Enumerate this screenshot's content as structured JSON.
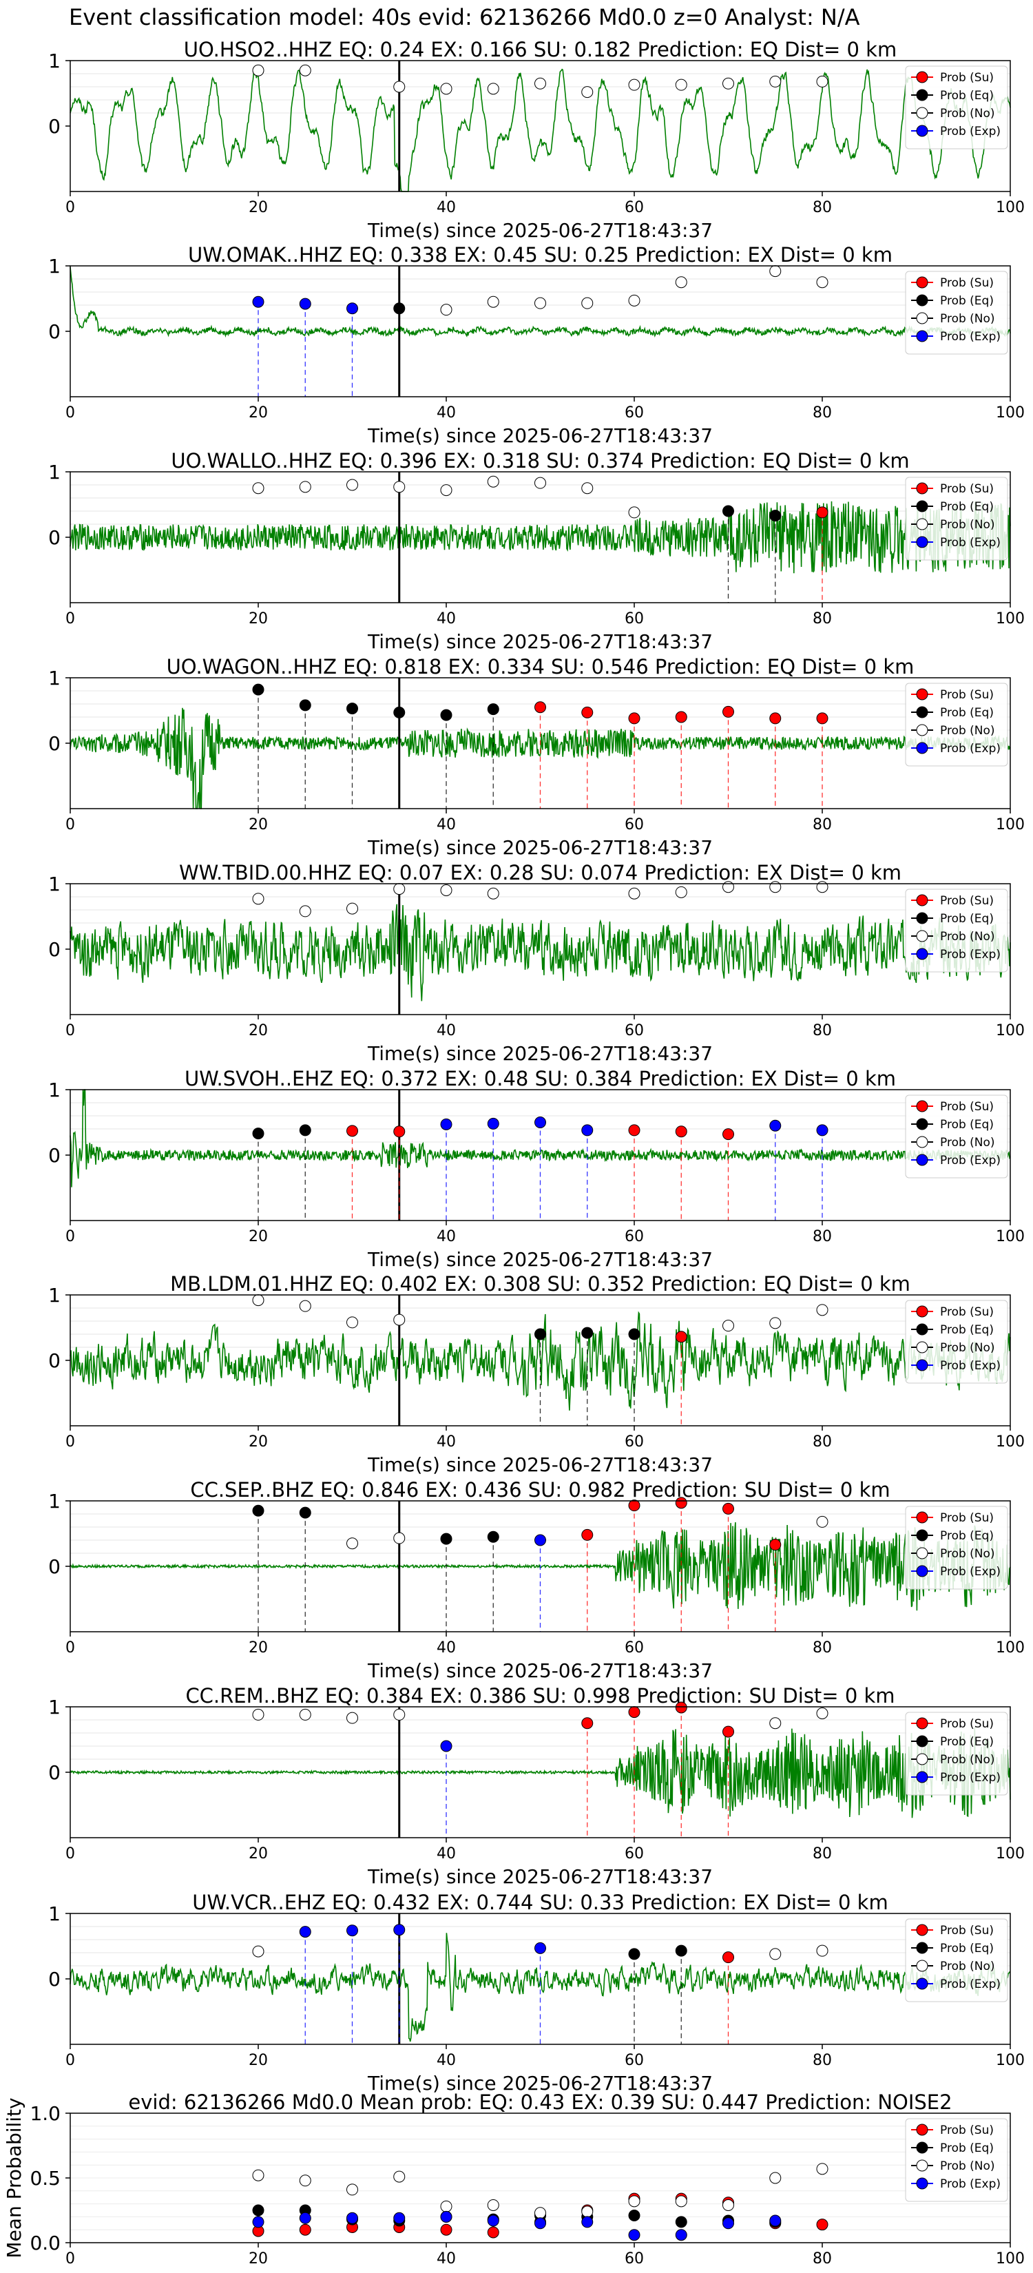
{
  "figure": {
    "title": "Event classification model: 40s evid: 62136266 Md0.0 z=0 Analyst: N/A",
    "x_ticks": [
      0,
      20,
      40,
      60,
      80,
      100
    ],
    "y_ticks": [
      0,
      1
    ],
    "xlabel": "Time(s) since 2025-06-27T18:43:37",
    "event_line_time": 35,
    "legend": [
      "Prob (Su)",
      "Prob (Eq)",
      "Prob (No)",
      "Prob (Exp)"
    ],
    "colors": {
      "su": "#ff0000",
      "eq": "#000000",
      "no": "#ffffff",
      "exp": "#0000ff",
      "waveform": "#008000"
    }
  },
  "chart_data": [
    {
      "type": "scatter",
      "title": "UO.HSO2..HHZ   EQ: 0.24  EX: 0.166  SU: 0.182   Prediction: EQ    Dist= 0 km",
      "waveform_style": "low_freq",
      "ylim": [
        -1,
        1
      ],
      "xlim": [
        0,
        100
      ],
      "points": [
        {
          "t": 20,
          "p": 0.85,
          "cls": "no"
        },
        {
          "t": 25,
          "p": 0.85,
          "cls": "no"
        },
        {
          "t": 35,
          "p": 0.6,
          "cls": "no"
        },
        {
          "t": 40,
          "p": 0.57,
          "cls": "no"
        },
        {
          "t": 45,
          "p": 0.57,
          "cls": "no"
        },
        {
          "t": 50,
          "p": 0.65,
          "cls": "no"
        },
        {
          "t": 55,
          "p": 0.52,
          "cls": "no"
        },
        {
          "t": 60,
          "p": 0.63,
          "cls": "no"
        },
        {
          "t": 65,
          "p": 0.63,
          "cls": "no"
        },
        {
          "t": 70,
          "p": 0.65,
          "cls": "no"
        },
        {
          "t": 75,
          "p": 0.68,
          "cls": "no"
        },
        {
          "t": 80,
          "p": 0.68,
          "cls": "no"
        }
      ]
    },
    {
      "type": "scatter",
      "title": "UW.OMAK..HHZ   EQ: 0.338  EX: 0.45  SU: 0.25   Prediction: EX    Dist= 0 km",
      "waveform_style": "quiet",
      "ylim": [
        -1,
        1
      ],
      "xlim": [
        0,
        100
      ],
      "points": [
        {
          "t": 20,
          "p": 0.45,
          "cls": "exp"
        },
        {
          "t": 25,
          "p": 0.42,
          "cls": "exp"
        },
        {
          "t": 30,
          "p": 0.35,
          "cls": "exp"
        },
        {
          "t": 35,
          "p": 0.35,
          "cls": "eq"
        },
        {
          "t": 40,
          "p": 0.33,
          "cls": "no"
        },
        {
          "t": 45,
          "p": 0.45,
          "cls": "no"
        },
        {
          "t": 50,
          "p": 0.43,
          "cls": "no"
        },
        {
          "t": 55,
          "p": 0.43,
          "cls": "no"
        },
        {
          "t": 60,
          "p": 0.47,
          "cls": "no"
        },
        {
          "t": 65,
          "p": 0.75,
          "cls": "no"
        },
        {
          "t": 75,
          "p": 0.92,
          "cls": "no"
        },
        {
          "t": 80,
          "p": 0.75,
          "cls": "no"
        }
      ]
    },
    {
      "type": "scatter",
      "title": "UO.WALLO..HHZ   EQ: 0.396  EX: 0.318  SU: 0.374   Prediction: EQ    Dist= 0 km",
      "waveform_style": "noise_late",
      "ylim": [
        -1,
        1
      ],
      "xlim": [
        0,
        100
      ],
      "points": [
        {
          "t": 20,
          "p": 0.75,
          "cls": "no"
        },
        {
          "t": 25,
          "p": 0.77,
          "cls": "no"
        },
        {
          "t": 30,
          "p": 0.8,
          "cls": "no"
        },
        {
          "t": 35,
          "p": 0.77,
          "cls": "no"
        },
        {
          "t": 40,
          "p": 0.72,
          "cls": "no"
        },
        {
          "t": 45,
          "p": 0.85,
          "cls": "no"
        },
        {
          "t": 50,
          "p": 0.83,
          "cls": "no"
        },
        {
          "t": 55,
          "p": 0.75,
          "cls": "no"
        },
        {
          "t": 60,
          "p": 0.38,
          "cls": "no"
        },
        {
          "t": 70,
          "p": 0.4,
          "cls": "eq"
        },
        {
          "t": 75,
          "p": 0.33,
          "cls": "eq"
        },
        {
          "t": 80,
          "p": 0.38,
          "cls": "su"
        }
      ]
    },
    {
      "type": "scatter",
      "title": "UO.WAGON..HHZ   EQ: 0.818  EX: 0.334  SU: 0.546   Prediction: EQ    Dist= 0 km",
      "waveform_style": "early_burst",
      "ylim": [
        -1,
        1
      ],
      "xlim": [
        0,
        100
      ],
      "points": [
        {
          "t": 20,
          "p": 0.82,
          "cls": "eq"
        },
        {
          "t": 25,
          "p": 0.58,
          "cls": "eq"
        },
        {
          "t": 30,
          "p": 0.53,
          "cls": "eq"
        },
        {
          "t": 35,
          "p": 0.47,
          "cls": "eq"
        },
        {
          "t": 40,
          "p": 0.43,
          "cls": "eq"
        },
        {
          "t": 45,
          "p": 0.52,
          "cls": "eq"
        },
        {
          "t": 50,
          "p": 0.55,
          "cls": "su"
        },
        {
          "t": 55,
          "p": 0.47,
          "cls": "su"
        },
        {
          "t": 60,
          "p": 0.38,
          "cls": "su"
        },
        {
          "t": 65,
          "p": 0.4,
          "cls": "su"
        },
        {
          "t": 70,
          "p": 0.48,
          "cls": "su"
        },
        {
          "t": 75,
          "p": 0.38,
          "cls": "su"
        },
        {
          "t": 80,
          "p": 0.38,
          "cls": "su"
        }
      ]
    },
    {
      "type": "scatter",
      "title": "WW.TBID.00.HHZ   EQ: 0.07  EX: 0.28  SU: 0.074   Prediction: EX    Dist= 0 km",
      "waveform_style": "noisy",
      "ylim": [
        -1,
        1
      ],
      "xlim": [
        0,
        100
      ],
      "points": [
        {
          "t": 20,
          "p": 0.77,
          "cls": "no"
        },
        {
          "t": 25,
          "p": 0.58,
          "cls": "no"
        },
        {
          "t": 30,
          "p": 0.62,
          "cls": "no"
        },
        {
          "t": 35,
          "p": 0.92,
          "cls": "no"
        },
        {
          "t": 40,
          "p": 0.9,
          "cls": "no"
        },
        {
          "t": 45,
          "p": 0.85,
          "cls": "no"
        },
        {
          "t": 60,
          "p": 0.85,
          "cls": "no"
        },
        {
          "t": 65,
          "p": 0.87,
          "cls": "no"
        },
        {
          "t": 70,
          "p": 0.95,
          "cls": "no"
        },
        {
          "t": 75,
          "p": 0.95,
          "cls": "no"
        },
        {
          "t": 80,
          "p": 0.95,
          "cls": "no"
        }
      ]
    },
    {
      "type": "scatter",
      "title": "UW.SVOH..EHZ   EQ: 0.372  EX: 0.48  SU: 0.384   Prediction: EX    Dist= 0 km",
      "waveform_style": "spike_start",
      "ylim": [
        -1,
        1
      ],
      "xlim": [
        0,
        100
      ],
      "points": [
        {
          "t": 20,
          "p": 0.33,
          "cls": "eq"
        },
        {
          "t": 25,
          "p": 0.38,
          "cls": "eq"
        },
        {
          "t": 30,
          "p": 0.37,
          "cls": "su"
        },
        {
          "t": 35,
          "p": 0.36,
          "cls": "su"
        },
        {
          "t": 40,
          "p": 0.47,
          "cls": "exp"
        },
        {
          "t": 45,
          "p": 0.48,
          "cls": "exp"
        },
        {
          "t": 50,
          "p": 0.5,
          "cls": "exp"
        },
        {
          "t": 55,
          "p": 0.38,
          "cls": "exp"
        },
        {
          "t": 60,
          "p": 0.38,
          "cls": "su"
        },
        {
          "t": 65,
          "p": 0.36,
          "cls": "su"
        },
        {
          "t": 70,
          "p": 0.32,
          "cls": "su"
        },
        {
          "t": 75,
          "p": 0.45,
          "cls": "exp"
        },
        {
          "t": 80,
          "p": 0.38,
          "cls": "exp"
        }
      ]
    },
    {
      "type": "scatter",
      "title": "MB.LDM.01.HHZ   EQ: 0.402  EX: 0.308  SU: 0.352   Prediction: EQ    Dist= 0 km",
      "waveform_style": "mixed",
      "ylim": [
        -1,
        1
      ],
      "xlim": [
        0,
        100
      ],
      "points": [
        {
          "t": 20,
          "p": 0.92,
          "cls": "no"
        },
        {
          "t": 25,
          "p": 0.83,
          "cls": "no"
        },
        {
          "t": 30,
          "p": 0.58,
          "cls": "no"
        },
        {
          "t": 35,
          "p": 0.62,
          "cls": "no"
        },
        {
          "t": 50,
          "p": 0.4,
          "cls": "eq"
        },
        {
          "t": 55,
          "p": 0.42,
          "cls": "eq"
        },
        {
          "t": 60,
          "p": 0.4,
          "cls": "eq"
        },
        {
          "t": 65,
          "p": 0.36,
          "cls": "su"
        },
        {
          "t": 70,
          "p": 0.53,
          "cls": "no"
        },
        {
          "t": 75,
          "p": 0.57,
          "cls": "no"
        },
        {
          "t": 80,
          "p": 0.77,
          "cls": "no"
        }
      ]
    },
    {
      "type": "scatter",
      "title": "CC.SEP..BHZ   EQ: 0.846  EX: 0.436  SU: 0.982   Prediction: SU    Dist= 0 km",
      "waveform_style": "late_large",
      "ylim": [
        -1,
        1
      ],
      "xlim": [
        0,
        100
      ],
      "points": [
        {
          "t": 20,
          "p": 0.85,
          "cls": "eq"
        },
        {
          "t": 25,
          "p": 0.82,
          "cls": "eq"
        },
        {
          "t": 30,
          "p": 0.35,
          "cls": "no"
        },
        {
          "t": 35,
          "p": 0.43,
          "cls": "no"
        },
        {
          "t": 40,
          "p": 0.42,
          "cls": "eq"
        },
        {
          "t": 45,
          "p": 0.45,
          "cls": "eq"
        },
        {
          "t": 50,
          "p": 0.4,
          "cls": "exp"
        },
        {
          "t": 55,
          "p": 0.48,
          "cls": "su"
        },
        {
          "t": 60,
          "p": 0.93,
          "cls": "su"
        },
        {
          "t": 65,
          "p": 0.97,
          "cls": "su"
        },
        {
          "t": 70,
          "p": 0.88,
          "cls": "su"
        },
        {
          "t": 75,
          "p": 0.33,
          "cls": "su"
        },
        {
          "t": 80,
          "p": 0.68,
          "cls": "no"
        }
      ]
    },
    {
      "type": "scatter",
      "title": "CC.REM..BHZ   EQ: 0.384  EX: 0.386  SU: 0.998   Prediction: SU    Dist= 0 km",
      "waveform_style": "late_large",
      "ylim": [
        -1,
        1
      ],
      "xlim": [
        0,
        100
      ],
      "points": [
        {
          "t": 20,
          "p": 0.88,
          "cls": "no"
        },
        {
          "t": 25,
          "p": 0.88,
          "cls": "no"
        },
        {
          "t": 30,
          "p": 0.83,
          "cls": "no"
        },
        {
          "t": 35,
          "p": 0.88,
          "cls": "no"
        },
        {
          "t": 40,
          "p": 0.4,
          "cls": "exp"
        },
        {
          "t": 55,
          "p": 0.75,
          "cls": "su"
        },
        {
          "t": 60,
          "p": 0.92,
          "cls": "su"
        },
        {
          "t": 65,
          "p": 0.99,
          "cls": "su"
        },
        {
          "t": 70,
          "p": 0.62,
          "cls": "su"
        },
        {
          "t": 75,
          "p": 0.75,
          "cls": "no"
        },
        {
          "t": 80,
          "p": 0.9,
          "cls": "no"
        }
      ]
    },
    {
      "type": "scatter",
      "title": "UW.VCR..EHZ   EQ: 0.432  EX: 0.744  SU: 0.33   Prediction: EX    Dist= 0 km",
      "waveform_style": "mid_spike",
      "ylim": [
        -1,
        1
      ],
      "xlim": [
        0,
        100
      ],
      "points": [
        {
          "t": 20,
          "p": 0.42,
          "cls": "no"
        },
        {
          "t": 25,
          "p": 0.72,
          "cls": "exp"
        },
        {
          "t": 30,
          "p": 0.74,
          "cls": "exp"
        },
        {
          "t": 35,
          "p": 0.75,
          "cls": "exp"
        },
        {
          "t": 50,
          "p": 0.47,
          "cls": "exp"
        },
        {
          "t": 60,
          "p": 0.38,
          "cls": "eq"
        },
        {
          "t": 65,
          "p": 0.43,
          "cls": "eq"
        },
        {
          "t": 70,
          "p": 0.33,
          "cls": "su"
        },
        {
          "t": 75,
          "p": 0.38,
          "cls": "no"
        },
        {
          "t": 80,
          "p": 0.43,
          "cls": "no"
        }
      ]
    },
    {
      "type": "scatter",
      "title": "evid: 62136266   Md0.0   Mean prob:   EQ: 0.43  EX: 0.39  SU: 0.447   Prediction: NOISE2",
      "ylabel": "Mean Probability",
      "ylim": [
        0,
        1
      ],
      "xlim": [
        0,
        100
      ],
      "y_ticks": [
        "0.0",
        "0.5",
        "1.0"
      ],
      "series": [
        {
          "name": "Prob (Su)",
          "cls": "su",
          "x": [
            20,
            25,
            30,
            35,
            40,
            45,
            50,
            55,
            60,
            65,
            70,
            75,
            80
          ],
          "y": [
            0.09,
            0.1,
            0.12,
            0.12,
            0.1,
            0.08,
            0.16,
            0.25,
            0.34,
            0.34,
            0.31,
            0.15,
            0.14
          ]
        },
        {
          "name": "Prob (Eq)",
          "cls": "eq",
          "x": [
            20,
            25,
            30,
            35,
            40,
            45,
            50,
            55,
            60,
            65,
            70,
            75
          ],
          "y": [
            0.25,
            0.25,
            0.18,
            0.17,
            0.2,
            0.18,
            0.21,
            0.2,
            0.21,
            0.16,
            0.17,
            0.16
          ]
        },
        {
          "name": "Prob (No)",
          "cls": "no",
          "x": [
            20,
            25,
            30,
            35,
            40,
            45,
            50,
            55,
            60,
            65,
            70,
            75,
            80
          ],
          "y": [
            0.52,
            0.48,
            0.41,
            0.51,
            0.28,
            0.29,
            0.23,
            0.24,
            0.32,
            0.32,
            0.29,
            0.5,
            0.57
          ]
        },
        {
          "name": "Prob (Exp)",
          "cls": "exp",
          "x": [
            20,
            25,
            30,
            35,
            40,
            45,
            50,
            55,
            60,
            65,
            70,
            75
          ],
          "y": [
            0.16,
            0.19,
            0.19,
            0.19,
            0.2,
            0.17,
            0.15,
            0.16,
            0.06,
            0.06,
            0.15,
            0.17
          ]
        }
      ]
    }
  ]
}
